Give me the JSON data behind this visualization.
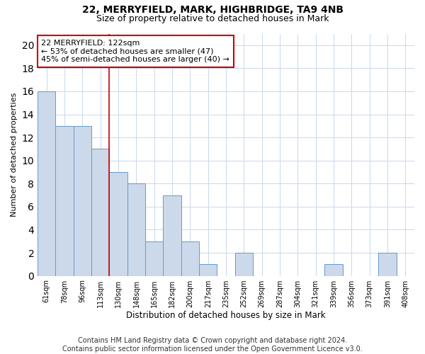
{
  "title": "22, MERRYFIELD, MARK, HIGHBRIDGE, TA9 4NB",
  "subtitle": "Size of property relative to detached houses in Mark",
  "xlabel": "Distribution of detached houses by size in Mark",
  "ylabel": "Number of detached properties",
  "categories": [
    "61sqm",
    "78sqm",
    "96sqm",
    "113sqm",
    "130sqm",
    "148sqm",
    "165sqm",
    "182sqm",
    "200sqm",
    "217sqm",
    "235sqm",
    "252sqm",
    "269sqm",
    "287sqm",
    "304sqm",
    "321sqm",
    "339sqm",
    "356sqm",
    "373sqm",
    "391sqm",
    "408sqm"
  ],
  "values": [
    16,
    13,
    13,
    11,
    9,
    8,
    3,
    7,
    3,
    1,
    0,
    2,
    0,
    0,
    0,
    0,
    1,
    0,
    0,
    2,
    0
  ],
  "bar_color": "#ccd9ea",
  "bar_edge_color": "#6699cc",
  "ylim": [
    0,
    21
  ],
  "yticks": [
    0,
    2,
    4,
    6,
    8,
    10,
    12,
    14,
    16,
    18,
    20
  ],
  "annotation_line1": "22 MERRYFIELD: 122sqm",
  "annotation_line2": "← 53% of detached houses are smaller (47)",
  "annotation_line3": "45% of semi-detached houses are larger (40) →",
  "vline_x_index": 3.5,
  "vline_color": "#cc0000",
  "box_edge_color": "#cc0000",
  "footnote_line1": "Contains HM Land Registry data © Crown copyright and database right 2024.",
  "footnote_line2": "Contains public sector information licensed under the Open Government Licence v3.0.",
  "title_fontsize": 10,
  "subtitle_fontsize": 9,
  "annotation_fontsize": 8,
  "footnote_fontsize": 7,
  "ylabel_fontsize": 8,
  "xlabel_fontsize": 8.5,
  "tick_fontsize": 7
}
